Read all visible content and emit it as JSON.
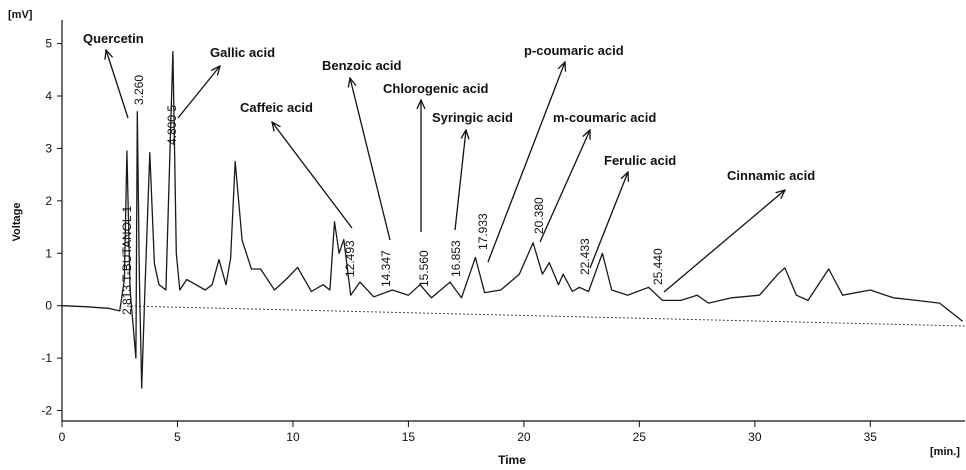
{
  "chart_data": {
    "type": "line",
    "y_unit": "[mV]",
    "y_label": "Voltage",
    "x_label": "Time",
    "x_unit": "[min.]",
    "xlim": [
      0,
      39.1
    ],
    "ylim": [
      -2.2,
      5.45
    ],
    "xticks": [
      0,
      5,
      10,
      15,
      20,
      25,
      30,
      35
    ],
    "yticks": [
      -2,
      -1,
      0,
      1,
      2,
      3,
      4,
      5
    ],
    "series": [
      {
        "name": "Voltage",
        "color": "#1a1a1a",
        "x": [
          0,
          1,
          2,
          2.5,
          2.7,
          2.81,
          2.95,
          3.2,
          3.26,
          3.35,
          3.45,
          3.6,
          3.8,
          4.0,
          4.2,
          4.5,
          4.8,
          4.95,
          5.1,
          5.4,
          5.8,
          6.2,
          6.5,
          6.8,
          7.1,
          7.3,
          7.5,
          7.8,
          8.2,
          8.6,
          9.2,
          9.7,
          10.2,
          10.8,
          11.3,
          11.6,
          11.8,
          12.0,
          12.2,
          12.5,
          12.9,
          13.5,
          14.3,
          15.0,
          15.5,
          16.0,
          16.8,
          17.3,
          17.9,
          18.3,
          19.0,
          19.8,
          20.4,
          20.8,
          21.1,
          21.5,
          21.7,
          22.1,
          22.4,
          22.8,
          23.4,
          23.8,
          24.5,
          25.4,
          26.0,
          26.8,
          27.5,
          28.0,
          29.0,
          30.2,
          31.0,
          31.3,
          31.8,
          32.3,
          33.2,
          33.8,
          35,
          36,
          37,
          38,
          39
        ],
        "values": [
          0,
          -0.02,
          -0.05,
          -0.1,
          0.5,
          2.95,
          0.3,
          -1.0,
          3.7,
          0.5,
          -1.57,
          0.4,
          2.92,
          0.8,
          0.4,
          0.3,
          4.85,
          1.0,
          0.3,
          0.5,
          0.4,
          0.3,
          0.4,
          0.88,
          0.4,
          0.9,
          2.75,
          1.25,
          0.7,
          0.7,
          0.3,
          0.5,
          0.73,
          0.27,
          0.4,
          0.3,
          1.6,
          1.0,
          1.26,
          0.2,
          0.45,
          0.17,
          0.3,
          0.2,
          0.4,
          0.15,
          0.45,
          0.15,
          0.92,
          0.25,
          0.3,
          0.6,
          1.2,
          0.6,
          0.82,
          0.4,
          0.6,
          0.27,
          0.35,
          0.27,
          1.0,
          0.3,
          0.2,
          0.35,
          0.1,
          0.1,
          0.2,
          0.05,
          0.15,
          0.2,
          0.6,
          0.72,
          0.2,
          0.1,
          0.7,
          0.2,
          0.3,
          0.15,
          0.1,
          0.05,
          -0.3
        ]
      }
    ],
    "annotations": [
      "Quercetin",
      "Gallic acid",
      "Benzoic acid",
      "Chlorogenic acid",
      "Caffeic acid",
      "Syringic acid",
      "p-coumaric acid",
      "m-coumaric acid",
      "Ferulic acid",
      "Cinnamic acid"
    ],
    "peak_labels": [
      "2.813 T-BUTANOL 1",
      "3.260",
      "4.800 5",
      "12.493",
      "14.347",
      "15.560",
      "16.853",
      "17.933",
      "20.380",
      "22.433",
      "25.440"
    ]
  }
}
